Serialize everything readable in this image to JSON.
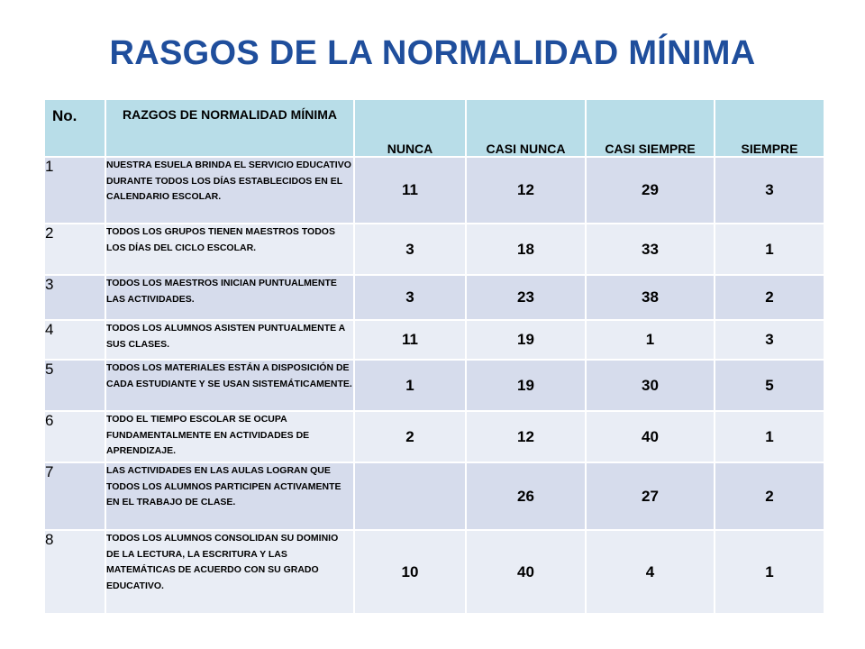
{
  "title": "RASGOS DE LA NORMALIDAD MÍNIMA",
  "table": {
    "headers": {
      "no": "No.",
      "rasgo": "RAZGOS DE NORMALIDAD MÍNIMA",
      "nunca": "NUNCA",
      "casi_nunca": "CASI NUNCA",
      "casi_siempre": "CASI SIEMPRE",
      "siempre": "SIEMPRE"
    },
    "rows": [
      {
        "no": "1",
        "rasgo": "NUESTRA ESUELA BRINDA EL SERVICIO EDUCATIVO DURANTE TODOS LOS DÍAS ESTABLECIDOS EN EL CALENDARIO ESCOLAR.",
        "nunca": "11",
        "casi_nunca": "12",
        "casi_siempre": "29",
        "siempre": "3"
      },
      {
        "no": "2",
        "rasgo": "TODOS LOS GRUPOS TIENEN MAESTROS TODOS LOS DÍAS DEL CICLO ESCOLAR.",
        "nunca": "3",
        "casi_nunca": "18",
        "casi_siempre": "33",
        "siempre": "1"
      },
      {
        "no": "3",
        "rasgo": "TODOS LOS MAESTROS INICIAN PUNTUALMENTE LAS ACTIVIDADES.",
        "nunca": "3",
        "casi_nunca": "23",
        "casi_siempre": "38",
        "siempre": "2"
      },
      {
        "no": "4",
        "rasgo": "TODOS LOS ALUMNOS ASISTEN PUNTUALMENTE A SUS CLASES.",
        "nunca": "11",
        "casi_nunca": "19",
        "casi_siempre": "1",
        "siempre": "3"
      },
      {
        "no": "5",
        "rasgo": "TODOS LOS MATERIALES ESTÁN A DISPOSICIÓN DE CADA ESTUDIANTE Y SE USAN SISTEMÁTICAMENTE.",
        "nunca": "1",
        "casi_nunca": "19",
        "casi_siempre": "30",
        "siempre": "5"
      },
      {
        "no": "6",
        "rasgo": "TODO EL TIEMPO ESCOLAR SE OCUPA FUNDAMENTALMENTE EN ACTIVIDADES DE APRENDIZAJE.",
        "nunca": "2",
        "casi_nunca": "12",
        "casi_siempre": "40",
        "siempre": "1"
      },
      {
        "no": "7",
        "rasgo": "LAS ACTIVIDADES EN LAS AULAS LOGRAN QUE TODOS LOS ALUMNOS PARTICIPEN ACTIVAMENTE EN EL TRABAJO DE CLASE.",
        "nunca": "",
        "casi_nunca": "26",
        "casi_siempre": "27",
        "siempre": "2"
      },
      {
        "no": "8",
        "rasgo": "TODOS LOS ALUMNOS CONSOLIDAN SU DOMINIO DE LA LECTURA, LA ESCRITURA Y LAS MATEMÁTICAS DE ACUERDO CON SU GRADO EDUCATIVO.",
        "nunca": "10",
        "casi_nunca": "40",
        "casi_siempre": "4",
        "siempre": "1"
      }
    ]
  }
}
